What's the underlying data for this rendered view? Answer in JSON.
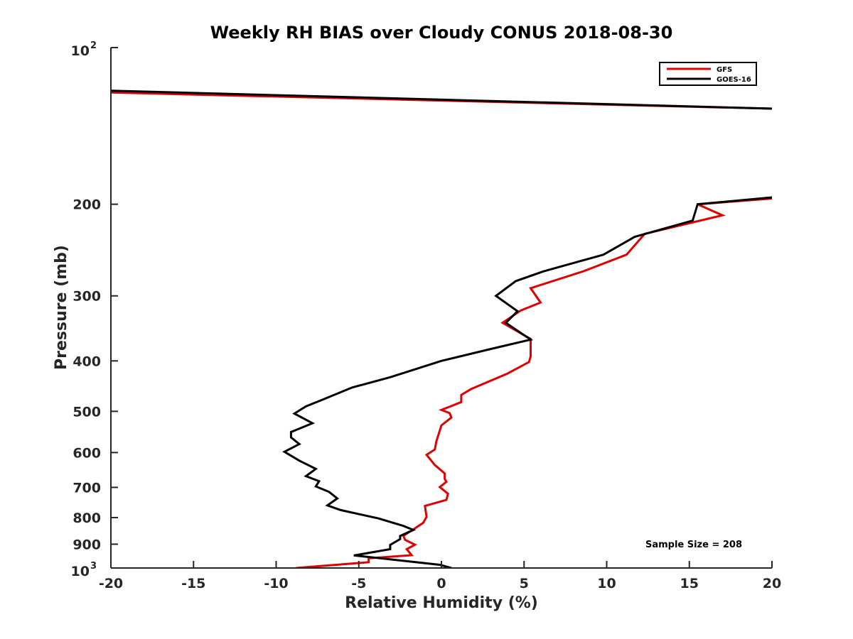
{
  "chart_data": {
    "type": "line",
    "title": "Weekly RH BIAS over Cloudy CONUS 2018-08-30",
    "xlabel": "Relative Humidity (%)",
    "ylabel": "Pressure (mb)",
    "xlim": [
      -20,
      20
    ],
    "ylim": [
      100,
      1000
    ],
    "y_scale": "log",
    "y_reversed": true,
    "grid": false,
    "legend_position": "top-right",
    "x_ticks": [
      "-20",
      "-15",
      "-10",
      "-5",
      "0",
      "5",
      "10",
      "15",
      "20"
    ],
    "y_ticks": [
      {
        "base": "10",
        "exp": "2"
      },
      {
        "label": "200"
      },
      {
        "label": "300"
      },
      {
        "label": "400"
      },
      {
        "label": "500"
      },
      {
        "label": "600"
      },
      {
        "label": "700"
      },
      {
        "label": "800"
      },
      {
        "label": "900"
      },
      {
        "base": "10",
        "exp": "3"
      }
    ],
    "annotation": "Sample Size = 208",
    "series": [
      {
        "name": "GFS",
        "color": "#e00000",
        "segments": [
          [
            [
              -20,
              122
            ],
            [
              20,
              131
            ]
          ],
          [
            [
              20,
              195
            ],
            [
              15.5,
              200
            ],
            [
              17,
              210
            ],
            [
              12.3,
              228
            ],
            [
              11.2,
              250
            ],
            [
              8.6,
              269
            ],
            [
              5.4,
              290
            ],
            [
              6,
              309
            ],
            [
              4.8,
              320
            ],
            [
              3.7,
              338
            ],
            [
              5.4,
              363
            ],
            [
              5.4,
              392
            ],
            [
              5.3,
              402
            ],
            [
              4,
              423
            ],
            [
              1.8,
              453
            ],
            [
              1.2,
              465
            ],
            [
              1.2,
              480
            ],
            [
              0,
              497
            ],
            [
              0.5,
              504
            ],
            [
              0.6,
              514
            ],
            [
              0,
              532
            ],
            [
              -0.3,
              570
            ],
            [
              -0.4,
              592
            ],
            [
              -0.9,
              606
            ],
            [
              -0.4,
              634
            ],
            [
              0.2,
              658
            ],
            [
              0.2,
              674
            ],
            [
              0.3,
              683
            ],
            [
              -0.1,
              699
            ],
            [
              0.4,
              720
            ],
            [
              0.3,
              740
            ],
            [
              -1,
              760
            ],
            [
              -0.9,
              797
            ],
            [
              -1.1,
              819
            ],
            [
              -1.7,
              843
            ],
            [
              -2.3,
              867
            ],
            [
              -2.2,
              883
            ],
            [
              -1.6,
              902
            ],
            [
              -2.1,
              920
            ],
            [
              -1.8,
              945
            ],
            [
              -4.4,
              958
            ],
            [
              -4.4,
              975
            ],
            [
              -8.8,
              1000
            ]
          ]
        ]
      },
      {
        "name": "GOES-16",
        "color": "#000000",
        "segments": [
          [
            [
              -20,
              121
            ],
            [
              20,
              131
            ]
          ],
          [
            [
              20,
              194
            ],
            [
              15.5,
              200
            ],
            [
              15.2,
              215
            ],
            [
              11.7,
              231
            ],
            [
              9.8,
              250
            ],
            [
              6.2,
              269
            ],
            [
              4.5,
              281
            ],
            [
              3.3,
              300
            ],
            [
              4.6,
              321
            ],
            [
              3.9,
              338
            ],
            [
              5.4,
              364
            ],
            [
              2.9,
              380
            ],
            [
              0,
              400
            ],
            [
              -3.1,
              430
            ],
            [
              -5.4,
              450
            ],
            [
              -7.2,
              475
            ],
            [
              -8.2,
              489
            ],
            [
              -8.9,
              505
            ],
            [
              -7.8,
              527
            ],
            [
              -9.1,
              548
            ],
            [
              -9.1,
              561
            ],
            [
              -8.6,
              578
            ],
            [
              -9.5,
              598
            ],
            [
              -8.6,
              622
            ],
            [
              -7.6,
              645
            ],
            [
              -8.2,
              666
            ],
            [
              -7.4,
              681
            ],
            [
              -7.6,
              697
            ],
            [
              -6.8,
              714
            ],
            [
              -6.3,
              735
            ],
            [
              -6.9,
              758
            ],
            [
              -6.1,
              774
            ],
            [
              -3.8,
              803
            ],
            [
              -2.3,
              830
            ],
            [
              -1.7,
              845
            ],
            [
              -2.5,
              868
            ],
            [
              -2.5,
              880
            ],
            [
              -3.1,
              903
            ],
            [
              -3.1,
              920
            ],
            [
              -5.3,
              946
            ],
            [
              -3.9,
              956
            ],
            [
              -0.1,
              986
            ],
            [
              0.6,
              1000
            ]
          ]
        ]
      }
    ]
  }
}
